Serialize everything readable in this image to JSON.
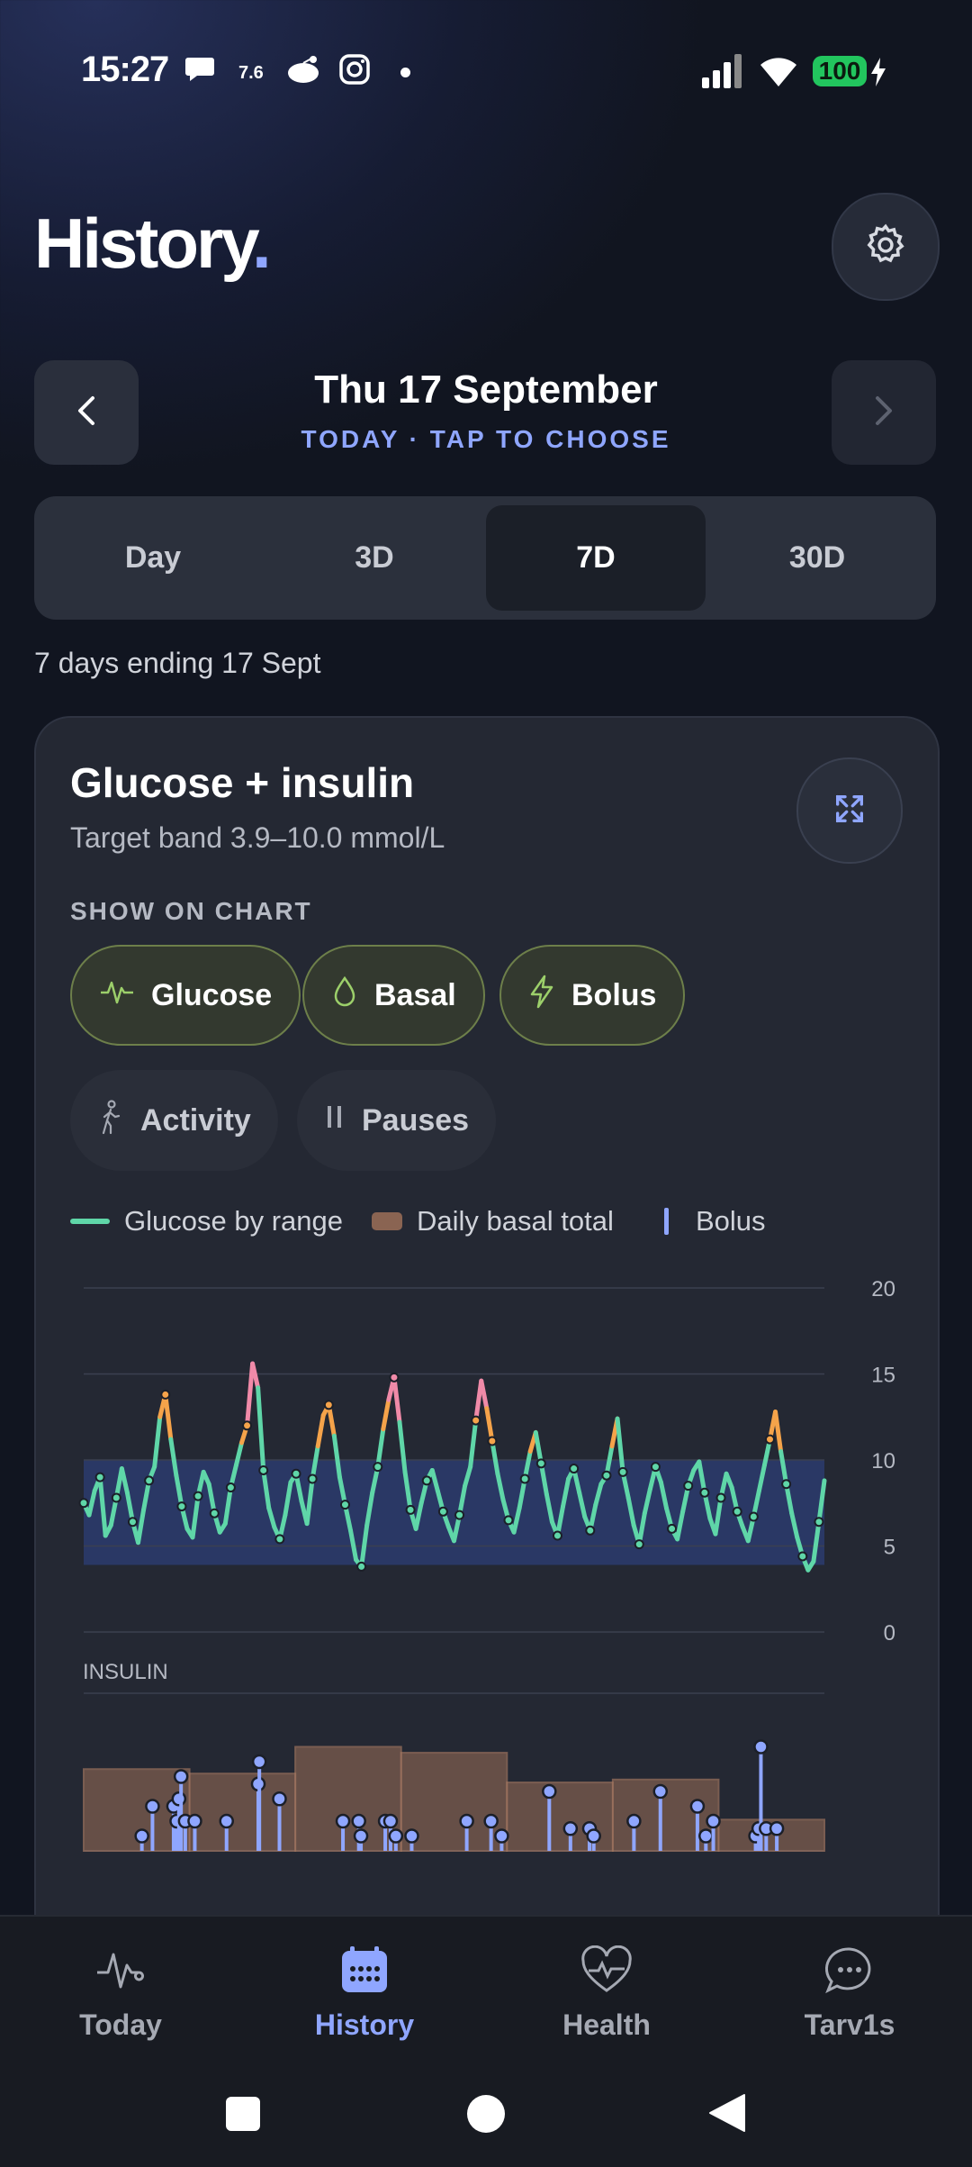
{
  "status": {
    "time": "15:27",
    "speed": "7.6",
    "battery": "100"
  },
  "header": {
    "title": "History",
    "title_dot": "."
  },
  "date": {
    "title": "Thu 17 September",
    "subtitle": "TODAY · TAP TO CHOOSE"
  },
  "range_tabs": [
    {
      "label": "Day",
      "active": false
    },
    {
      "label": "3D",
      "active": false
    },
    {
      "label": "7D",
      "active": true
    },
    {
      "label": "30D",
      "active": false
    }
  ],
  "range_text": "7 days ending 17 Sept",
  "card": {
    "title": "Glucose + insulin",
    "subtitle": "Target band 3.9–10.0 mmol/L",
    "show_label": "SHOW ON CHART",
    "chips": [
      {
        "label": "Glucose",
        "on": true,
        "icon": "pulse-icon"
      },
      {
        "label": "Basal",
        "on": true,
        "icon": "drop-icon"
      },
      {
        "label": "Bolus",
        "on": true,
        "icon": "bolt-icon"
      },
      {
        "label": "Activity",
        "on": false,
        "icon": "walk-icon"
      },
      {
        "label": "Pauses",
        "on": false,
        "icon": "pause-icon"
      }
    ],
    "legend": {
      "glucose": "Glucose by range",
      "basal": "Daily basal total",
      "bolus": "Bolus"
    },
    "insulin_label": "INSULIN"
  },
  "colors": {
    "accent": "#8fa6ff",
    "in_range": "#5fd6a8",
    "high": "#f5a34a",
    "very_high": "#f08aa8",
    "basal": "#8a6452",
    "bolus": "#8fa6ff",
    "target_band": "#2b3b6e"
  },
  "chart_data": [
    {
      "type": "line",
      "title": "",
      "ylabel": "",
      "yticks": [
        0,
        5,
        10,
        15,
        20
      ],
      "ylim": [
        0,
        20
      ],
      "target_band": [
        3.9,
        10.0
      ],
      "grid": true,
      "x_days": 7,
      "series": [
        {
          "name": "Glucose by range",
          "values": [
            7.5,
            6.8,
            8.2,
            9.0,
            5.6,
            6.2,
            7.8,
            9.5,
            8.1,
            6.4,
            5.2,
            7.1,
            8.8,
            9.6,
            12.5,
            13.8,
            11.2,
            9.1,
            7.3,
            6.0,
            5.5,
            7.9,
            9.3,
            8.6,
            6.9,
            5.8,
            6.3,
            8.4,
            9.7,
            11.0,
            12.0,
            15.6,
            14.2,
            9.4,
            7.2,
            6.1,
            5.4,
            6.8,
            8.7,
            9.2,
            7.6,
            6.3,
            8.9,
            10.8,
            12.6,
            13.2,
            11.4,
            9.0,
            7.4,
            5.9,
            4.2,
            3.8,
            6.2,
            8.1,
            9.6,
            11.8,
            13.5,
            14.8,
            12.2,
            9.3,
            7.1,
            6.0,
            7.5,
            8.8,
            9.4,
            8.2,
            7.0,
            6.1,
            5.3,
            6.8,
            8.5,
            9.6,
            12.3,
            14.6,
            13.0,
            11.1,
            9.2,
            7.7,
            6.5,
            5.8,
            7.2,
            8.9,
            10.5,
            11.6,
            9.8,
            8.0,
            6.4,
            5.6,
            7.3,
            8.9,
            9.5,
            8.1,
            6.7,
            5.9,
            7.4,
            8.6,
            9.1,
            10.8,
            12.4,
            9.3,
            7.8,
            6.2,
            5.1,
            6.9,
            8.3,
            9.6,
            8.7,
            7.2,
            6.0,
            5.4,
            7.0,
            8.5,
            9.4,
            9.9,
            8.1,
            6.6,
            5.7,
            7.8,
            9.2,
            8.4,
            7.0,
            6.1,
            5.3,
            6.7,
            8.2,
            9.7,
            11.2,
            12.8,
            10.5,
            8.6,
            6.9,
            5.5,
            4.4,
            3.6,
            4.1,
            6.4,
            8.8
          ]
        }
      ]
    },
    {
      "type": "bar",
      "title": "",
      "ylabel": "INSULIN",
      "series": [
        {
          "name": "Daily basal total",
          "values": [
            0.55,
            0.52,
            0.7,
            0.66,
            0.46,
            0.48,
            0.21
          ]
        },
        {
          "name": "Bolus",
          "x_day": [
            0.55,
            0.65,
            0.85,
            0.88,
            0.9,
            0.92,
            0.96,
            1.05,
            1.35,
            1.65,
            1.66,
            1.85,
            2.45,
            2.6,
            2.62,
            2.85,
            2.9,
            2.95,
            3.1,
            3.62,
            3.85,
            3.95,
            4.4,
            4.6,
            4.78,
            4.82,
            5.2,
            5.45,
            5.8,
            5.88,
            5.95,
            6.35,
            6.38,
            6.4,
            6.45,
            6.55
          ],
          "values": [
            0.1,
            0.3,
            0.3,
            0.2,
            0.35,
            0.5,
            0.2,
            0.2,
            0.2,
            0.45,
            0.6,
            0.35,
            0.2,
            0.2,
            0.1,
            0.2,
            0.2,
            0.1,
            0.1,
            0.2,
            0.2,
            0.1,
            0.4,
            0.15,
            0.15,
            0.1,
            0.2,
            0.4,
            0.3,
            0.1,
            0.2,
            0.1,
            0.15,
            0.7,
            0.15,
            0.15
          ]
        }
      ]
    }
  ]
}
